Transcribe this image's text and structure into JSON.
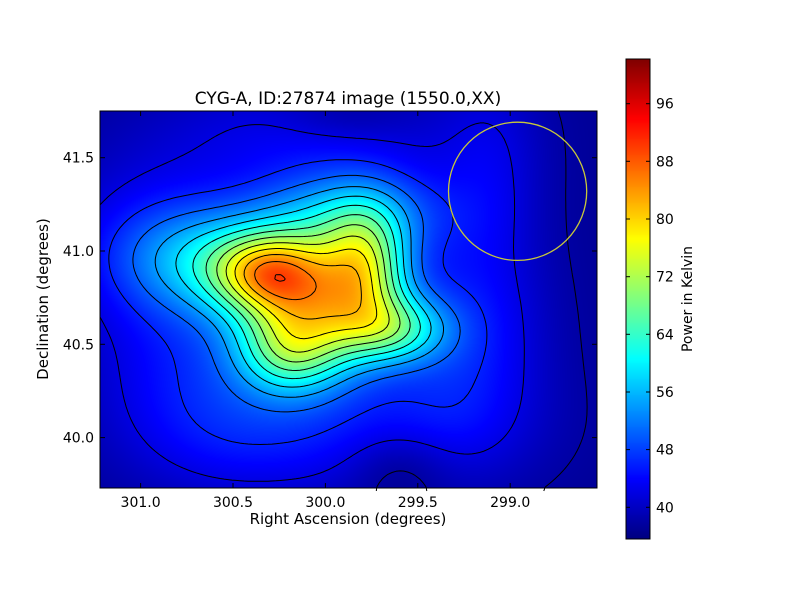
{
  "chart_data": {
    "type": "heatmap",
    "title": "CYG-A, ID:27874 image (1550.0,XX)",
    "xlabel": "Right Ascension (degrees)",
    "ylabel": "Declination (degrees)",
    "xlim": [
      301.22,
      298.53
    ],
    "ylim": [
      39.73,
      41.75
    ],
    "x_ticks": [
      301.0,
      300.5,
      300.0,
      299.5,
      299.0
    ],
    "x_tick_labels": [
      "301.0",
      "300.5",
      "300.0",
      "299.5",
      "299.0"
    ],
    "y_ticks": [
      40.0,
      40.5,
      41.0,
      41.5
    ],
    "y_tick_labels": [
      "40.0",
      "40.5",
      "41.0",
      "41.5"
    ],
    "colorbar": {
      "label": "Power in Kelvin",
      "range": [
        35.6,
        102.2
      ],
      "ticks": [
        40,
        48,
        56,
        64,
        72,
        80,
        88,
        96
      ],
      "tick_labels": [
        "40",
        "48",
        "56",
        "64",
        "72",
        "80",
        "88",
        "96"
      ],
      "colormap": "jet"
    },
    "model": {
      "background": 37,
      "components": [
        {
          "ra": 300.05,
          "dec": 40.72,
          "amp": 32,
          "sx": 0.28,
          "sy": 0.26
        },
        {
          "ra": 299.78,
          "dec": 40.92,
          "amp": 20,
          "sx": 0.16,
          "sy": 0.22
        },
        {
          "ra": 300.32,
          "dec": 40.88,
          "amp": 19,
          "sx": 0.2,
          "sy": 0.14
        },
        {
          "ra": 299.62,
          "dec": 40.58,
          "amp": 17,
          "sx": 0.2,
          "sy": 0.13
        },
        {
          "ra": 300.2,
          "dec": 40.45,
          "amp": 14,
          "sx": 0.2,
          "sy": 0.16
        },
        {
          "ra": 300.55,
          "dec": 40.95,
          "amp": 16,
          "sx": 0.35,
          "sy": 0.2
        },
        {
          "ra": 299.85,
          "dec": 41.2,
          "amp": 13,
          "sx": 0.35,
          "sy": 0.17
        },
        {
          "ra": 299.25,
          "dec": 40.55,
          "amp": 8,
          "sx": 0.3,
          "sy": 0.4
        },
        {
          "ra": 300.7,
          "dec": 40.4,
          "amp": 7,
          "sx": 0.4,
          "sy": 0.35
        },
        {
          "ra": 300.95,
          "dec": 41.05,
          "amp": 6,
          "sx": 0.35,
          "sy": 0.3
        },
        {
          "ra": 300.1,
          "dec": 41.6,
          "amp": 6,
          "sx": 0.6,
          "sy": 0.25
        },
        {
          "ra": 299.6,
          "dec": 40.05,
          "amp": 5,
          "sx": 0.5,
          "sy": 0.25
        },
        {
          "ra": 300.4,
          "dec": 40.0,
          "amp": 5,
          "sx": 0.45,
          "sy": 0.25
        },
        {
          "ra": 299.1,
          "dec": 41.45,
          "amp": 4,
          "sx": 0.2,
          "sy": 0.4
        },
        {
          "ra": 299.6,
          "dec": 39.85,
          "amp": -4,
          "sx": 0.2,
          "sy": 0.15
        },
        {
          "ra": 299.9,
          "dec": 41.72,
          "amp": -3,
          "sx": 0.25,
          "sy": 0.1
        }
      ]
    },
    "contour_levels": [
      38,
      42,
      46,
      50,
      54,
      58,
      62,
      66,
      70,
      74,
      78,
      82,
      86,
      90,
      94,
      98
    ],
    "annotations": [
      {
        "type": "circle",
        "center": [
          298.96,
          41.32
        ],
        "radius_dec": 0.37,
        "color": "#c8c83a"
      }
    ]
  }
}
